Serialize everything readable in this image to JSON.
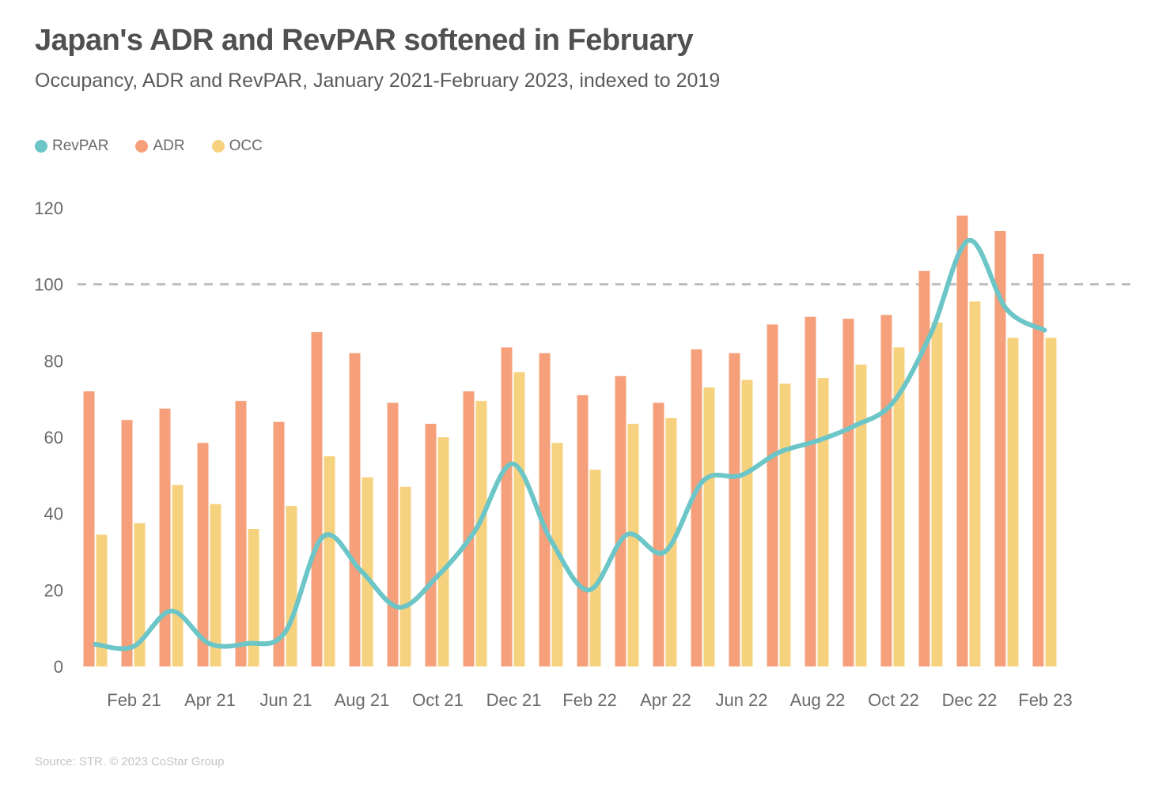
{
  "title": "Japan's ADR and RevPAR softened in February",
  "subtitle": "Occupancy, ADR and RevPAR, January 2021-February 2023, indexed to 2019",
  "source": "Source: STR. © 2023 CoStar Group",
  "legend": [
    {
      "label": "RevPAR",
      "color": "#6cc5c6"
    },
    {
      "label": "ADR",
      "color": "#f5a07b"
    },
    {
      "label": "OCC",
      "color": "#f6d27e"
    }
  ],
  "chart_data": {
    "type": "bar",
    "title": "Japan's ADR and RevPAR softened in February",
    "reference_line": 100,
    "ylim": [
      0,
      120
    ],
    "yticks": [
      0,
      20,
      40,
      60,
      80,
      100,
      120
    ],
    "categories": [
      "Jan 21",
      "Feb 21",
      "Mar 21",
      "Apr 21",
      "May 21",
      "Jun 21",
      "Jul 21",
      "Aug 21",
      "Sep 21",
      "Oct 21",
      "Nov 21",
      "Dec 21",
      "Jan 22",
      "Feb 22",
      "Mar 22",
      "Apr 22",
      "May 22",
      "Jun 22",
      "Jul 22",
      "Aug 22",
      "Sep 22",
      "Oct 22",
      "Nov 22",
      "Dec 22",
      "Jan 23",
      "Feb 23"
    ],
    "xtick_labels": [
      "Feb 21",
      "Apr 21",
      "Jun 21",
      "Aug 21",
      "Oct 21",
      "Dec 21",
      "Feb 22",
      "Apr 22",
      "Jun 22",
      "Aug 22",
      "Oct 22",
      "Dec 22",
      "Feb 23"
    ],
    "series": [
      {
        "name": "ADR",
        "type": "bar",
        "color": "#f5a07b",
        "values": [
          72,
          64.5,
          67.5,
          58.5,
          69.5,
          64,
          87.5,
          82,
          69,
          63.5,
          72,
          83.5,
          82,
          71,
          76,
          69,
          83,
          82,
          89.5,
          91.5,
          91,
          92,
          103.5,
          118,
          114,
          108
        ]
      },
      {
        "name": "OCC",
        "type": "bar",
        "color": "#f6d27e",
        "values": [
          34.5,
          37.5,
          47.5,
          42.5,
          36,
          42,
          55,
          49.5,
          47,
          60,
          69.5,
          77,
          58.5,
          51.5,
          63.5,
          65,
          73,
          75,
          74,
          75.5,
          79,
          83.5,
          90,
          95.5,
          86,
          86
        ]
      },
      {
        "name": "RevPAR",
        "type": "line",
        "color": "#6cc5c6",
        "values": [
          5.8,
          5.2,
          14.5,
          6,
          6,
          9,
          34,
          25,
          15.5,
          23.5,
          35.5,
          53,
          33,
          20,
          34.5,
          30,
          48.5,
          50,
          56,
          59,
          63,
          69,
          87,
          111.5,
          93.5,
          88
        ]
      }
    ]
  }
}
